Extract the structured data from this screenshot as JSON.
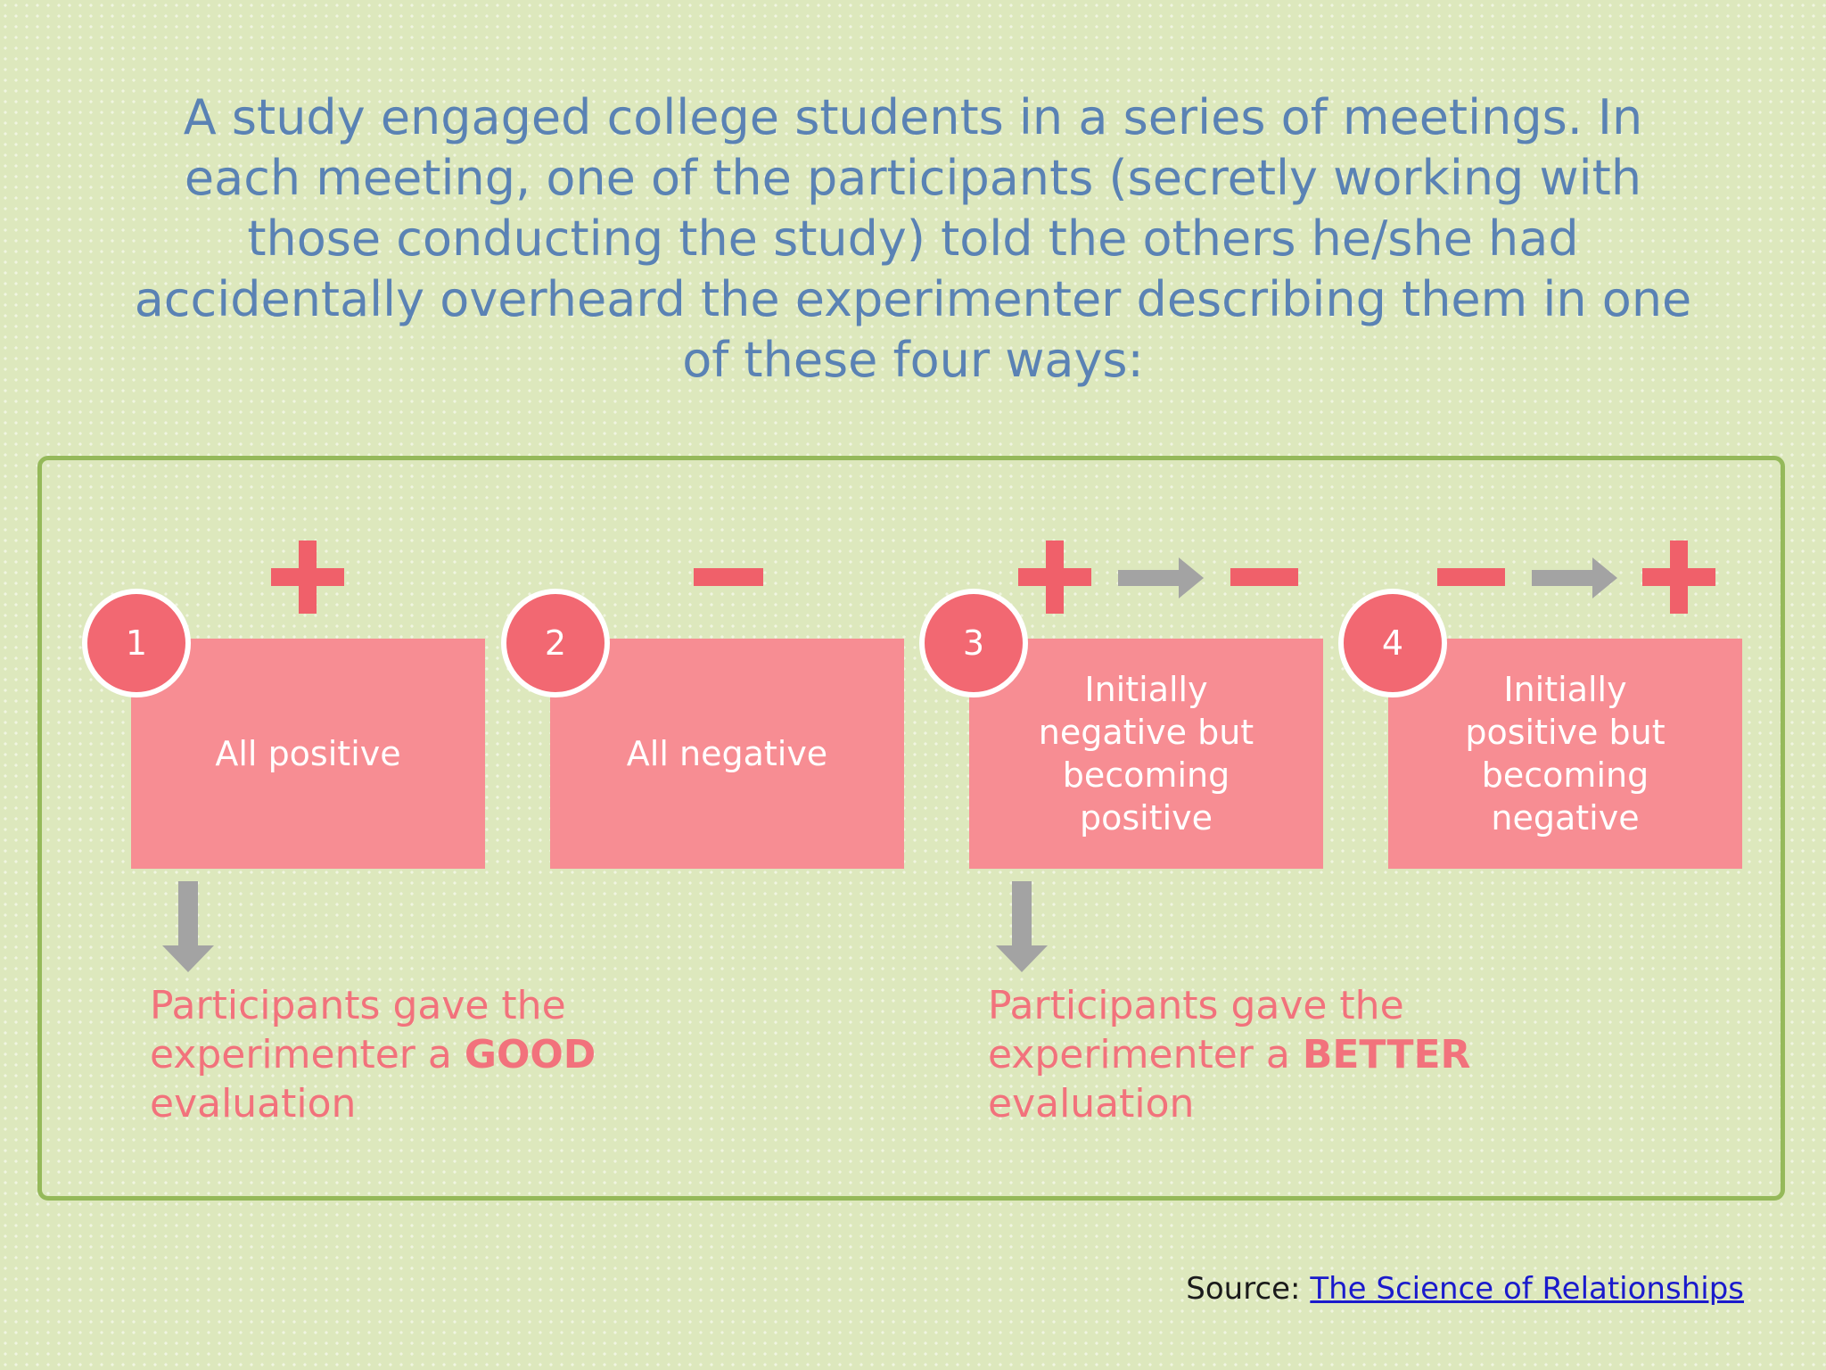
{
  "intro_text": "A study engaged college students in a series of meetings. In each meeting, one of the participants (secretly working with those conducting the study) told the others he/she had accidentally overheard the experimenter describing them in one of these four ways:",
  "conditions": [
    {
      "number": "1",
      "label": "All positive",
      "symbols": [
        "plus-icon"
      ]
    },
    {
      "number": "2",
      "label": "All negative",
      "symbols": [
        "minus-icon"
      ]
    },
    {
      "number": "3",
      "label": "Initially negative but becoming positive",
      "symbols": [
        "plus-icon",
        "right-arrow-icon",
        "minus-icon"
      ]
    },
    {
      "number": "4",
      "label": "Initially positive but becoming negative",
      "symbols": [
        "minus-icon",
        "right-arrow-icon",
        "plus-icon"
      ]
    }
  ],
  "outcomes": [
    {
      "prefix": "Participants gave the experimenter a ",
      "emphasis": "GOOD",
      "suffix": " evaluation"
    },
    {
      "prefix": "Participants gave the experimenter a ",
      "emphasis": "BETTER",
      "suffix": " evaluation"
    }
  ],
  "source": {
    "label": "Source:",
    "link_text": "The Science of Relationships"
  },
  "colors": {
    "background": "#dde8bd",
    "heading_blue": "#5a82b4",
    "card_pink": "#f78d93",
    "badge_red": "#f26872",
    "symbol_red": "#f0606a",
    "arrow_gray": "#a3a3a3",
    "panel_border": "#95b95a",
    "outcome_text": "#f2727c"
  }
}
